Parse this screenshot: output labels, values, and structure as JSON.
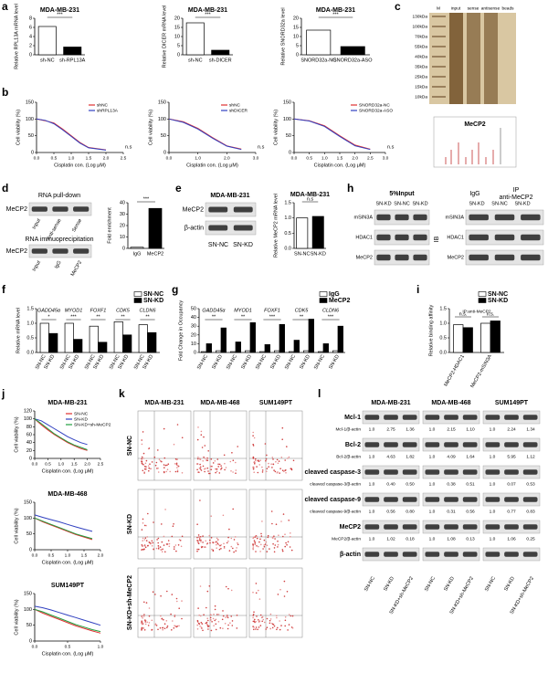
{
  "panel_letters": [
    "a",
    "b",
    "c",
    "d",
    "e",
    "f",
    "g",
    "h",
    "i",
    "j",
    "k",
    "l"
  ],
  "charts": [
    {
      "type": "bar",
      "title": "MDA-MB-231",
      "ylabel": "Relative RPL13A mRNA level",
      "categories": [
        "sh-NC",
        "sh-RPL13A"
      ],
      "values": [
        6.2,
        1.7
      ],
      "colors": [
        "#ffffff",
        "#000000"
      ],
      "ylim": [
        0,
        8
      ],
      "yticks": [
        0,
        2,
        4,
        6,
        8
      ],
      "sig": "***"
    },
    {
      "type": "bar",
      "title": "MDA-MB-231",
      "ylabel": "Relative DICER mRNA level",
      "categories": [
        "sh-NC",
        "sh-DICER"
      ],
      "values": [
        17.5,
        2.5
      ],
      "colors": [
        "#ffffff",
        "#000000"
      ],
      "ylim": [
        0,
        20
      ],
      "yticks": [
        0,
        5,
        10,
        15,
        20
      ],
      "sig": "***"
    },
    {
      "type": "bar",
      "title": "MDA-MB-231",
      "ylabel": "Relative SNORD32a level",
      "categories": [
        "SNORD32a-NC",
        "SNORD32a-ASO"
      ],
      "values": [
        13.5,
        4.5
      ],
      "colors": [
        "#ffffff",
        "#000000"
      ],
      "ylim": [
        0,
        20
      ],
      "yticks": [
        0,
        5,
        10,
        15,
        20
      ],
      "sig": "***"
    },
    {
      "type": "line",
      "ylabel": "Cell viability (%)",
      "xlabel": "Cisplatin con. (Log μM)",
      "x": [
        0,
        0.25,
        0.5,
        0.75,
        1.0,
        1.25,
        1.5,
        2.0
      ],
      "series": [
        {
          "name": "shNC",
          "color": "#e03030",
          "values": [
            100,
            95,
            88,
            70,
            50,
            30,
            15,
            8
          ]
        },
        {
          "name": "shRPL13A",
          "color": "#3040c0",
          "values": [
            100,
            96,
            86,
            68,
            48,
            28,
            14,
            7
          ]
        }
      ],
      "xlim": [
        0,
        2.5
      ],
      "xticks": [
        {
          "value": 0,
          "label": "0.0"
        },
        {
          "value": 0.5,
          "label": "0.5"
        },
        {
          "value": 1,
          "label": "1.0"
        },
        {
          "value": 1.5,
          "label": "1.5"
        },
        {
          "value": 2,
          "label": "2.0"
        },
        {
          "value": 2.5,
          "label": "2.5"
        }
      ],
      "ylim": [
        0,
        150
      ],
      "yticks": [
        0,
        50,
        100,
        150
      ],
      "legend": true,
      "annotation": "n.s"
    },
    {
      "type": "line",
      "ylabel": "Cell viability (%)",
      "xlabel": "Cisplatin con. (Log μM)",
      "x": [
        0,
        0.5,
        1.0,
        1.5,
        2.0,
        2.5
      ],
      "series": [
        {
          "name": "shNC",
          "color": "#e03030",
          "values": [
            100,
            92,
            72,
            45,
            20,
            10
          ]
        },
        {
          "name": "shDICER",
          "color": "#3040c0",
          "values": [
            100,
            90,
            70,
            43,
            19,
            9
          ]
        }
      ],
      "xlim": [
        0,
        3
      ],
      "xticks": [
        {
          "value": 0,
          "label": "0.0"
        },
        {
          "value": 1,
          "label": "1.0"
        },
        {
          "value": 2,
          "label": "2.0"
        },
        {
          "value": 3,
          "label": "3.0"
        }
      ],
      "ylim": [
        0,
        150
      ],
      "yticks": [
        0,
        50,
        100,
        150
      ],
      "legend": true,
      "annotation": "n.s"
    },
    {
      "type": "line",
      "ylabel": "Cell viability (%)",
      "xlabel": "Cisplatin con. (Log μM)",
      "x": [
        0,
        0.5,
        1.0,
        1.5,
        2.0,
        2.5
      ],
      "series": [
        {
          "name": "SNORD32a-NC",
          "color": "#e03030",
          "values": [
            100,
            95,
            80,
            50,
            22,
            10
          ]
        },
        {
          "name": "SNORD32a-ASO",
          "color": "#3040c0",
          "values": [
            100,
            94,
            78,
            48,
            20,
            9
          ]
        }
      ],
      "xlim": [
        0,
        3
      ],
      "xticks": [
        {
          "value": 0,
          "label": "0.0"
        },
        {
          "value": 0.5,
          "label": "0.5"
        },
        {
          "value": 1,
          "label": "1.0"
        },
        {
          "value": 1.5,
          "label": "1.5"
        },
        {
          "value": 2,
          "label": "2.0"
        },
        {
          "value": 2.5,
          "label": "2.5"
        },
        {
          "value": 3,
          "label": "3.0"
        }
      ],
      "ylim": [
        0,
        150
      ],
      "yticks": [
        0,
        50,
        100,
        150
      ],
      "legend": true,
      "annotation": "n.s"
    },
    {
      "type": "bar",
      "ylabel": "Fold enrichment",
      "categories": [
        "IgG",
        "MeCP2"
      ],
      "values": [
        1,
        35
      ],
      "colors": [
        "#ffffff",
        "#000000"
      ],
      "ylim": [
        0,
        40
      ],
      "yticks": [
        0,
        10,
        20,
        30,
        40
      ],
      "sig": "***"
    },
    {
      "type": "bar",
      "title": "MDA-MB-231",
      "ylabel": "Relative MeCP2 mRNA level",
      "categories": [
        "SN-NC",
        "SN-KD"
      ],
      "values": [
        1.0,
        1.05
      ],
      "colors": [
        "#ffffff",
        "#000000"
      ],
      "ylim": [
        0,
        1.5
      ],
      "yticks": [
        {
          "value": 0,
          "label": "0.0"
        },
        {
          "value": 0.5,
          "label": "0.5"
        },
        {
          "value": 1,
          "label": "1.0"
        },
        {
          "value": 1.5,
          "label": "1.5"
        }
      ],
      "sig": "n.s"
    },
    {
      "type": "bar",
      "ylabel": "Relative mRNA level",
      "categories": [
        "GADD45α",
        "MYOD1",
        "FOXF1",
        "CDK5",
        "CLDN6"
      ],
      "series": [
        {
          "name": "SN-NC",
          "color": "#ffffff",
          "values": [
            1.0,
            1.0,
            0.9,
            1.05,
            0.95
          ]
        },
        {
          "name": "SN-KD",
          "color": "#000000",
          "values": [
            0.65,
            0.45,
            0.35,
            0.6,
            0.68
          ]
        }
      ],
      "bar_labels": "series",
      "ylim": [
        0,
        1.5
      ],
      "yticks": [
        {
          "value": 0,
          "label": "0.0"
        },
        {
          "value": 0.5,
          "label": "0.5"
        },
        {
          "value": 1,
          "label": "1.0"
        },
        {
          "value": 1.5,
          "label": "1.5"
        }
      ],
      "sig": [
        "*",
        "***",
        "**",
        "**",
        "**"
      ],
      "legend": true
    },
    {
      "type": "bar",
      "ylabel": "Fold Change in Occupancy",
      "groups": [
        "GADD45α",
        "MYOD1",
        "FOXF1",
        "CDK5",
        "CLDN6"
      ],
      "categories": [
        "SN-NC",
        "SN-KD",
        "SN-NC",
        "SN-KD",
        "SN-NC",
        "SN-KD",
        "SN-NC",
        "SN-KD",
        "SN-NC",
        "SN-KD"
      ],
      "series": [
        {
          "name": "IgG",
          "color": "#ffffff",
          "values": [
            1,
            2,
            1,
            2,
            1,
            2,
            1,
            2,
            1,
            2
          ]
        },
        {
          "name": "MeCP2",
          "color": "#000000",
          "values": [
            10,
            28,
            12,
            34,
            9,
            32,
            14,
            38,
            10,
            30
          ]
        }
      ],
      "ylim": [
        0,
        50
      ],
      "yticks": [
        0,
        10,
        20,
        30,
        40,
        50
      ],
      "sig": [
        "**",
        "**",
        "***",
        "**",
        "***"
      ],
      "legend": true
    },
    {
      "type": "bar",
      "ylabel": "Relative binding affinity",
      "note": "IP:anti-MeCP2",
      "categories": [
        "MeCP2-HDAC1",
        "MeCP2-mSIN3A"
      ],
      "series": [
        {
          "name": "SN-NC",
          "color": "#ffffff",
          "values": [
            0.95,
            1.0
          ]
        },
        {
          "name": "SN-KD",
          "color": "#000000",
          "values": [
            0.85,
            1.08
          ]
        }
      ],
      "ylim": [
        0,
        1.5
      ],
      "yticks": [
        {
          "value": 0,
          "label": "0.0"
        },
        {
          "value": 0.5,
          "label": "0.5"
        },
        {
          "value": 1,
          "label": "1.0"
        },
        {
          "value": 1.5,
          "label": "1.5"
        }
      ],
      "sig": [
        "n.s.",
        "n.s."
      ],
      "legend": true
    },
    {
      "type": "line",
      "title": "MDA-MB-231",
      "ylabel": "Cell viability (%)",
      "xlabel": "Cisplatin con. (Log μM)",
      "x": [
        0,
        0.25,
        0.5,
        0.75,
        1.0,
        1.25,
        1.5,
        1.75,
        2.0
      ],
      "series": [
        {
          "name": "SN-NC",
          "color": "#e03030",
          "values": [
            100,
            85,
            72,
            60,
            50,
            40,
            32,
            25,
            20
          ]
        },
        {
          "name": "SN-KD",
          "color": "#3040c0",
          "values": [
            100,
            95,
            85,
            75,
            65,
            55,
            47,
            40,
            35
          ]
        },
        {
          "name": "SN-KD+sh-MeCP2",
          "color": "#20a040",
          "values": [
            100,
            88,
            75,
            62,
            52,
            42,
            34,
            28,
            22
          ]
        }
      ],
      "xlim": [
        0,
        2.5
      ],
      "xticks": [
        {
          "value": 0,
          "label": "0.0"
        },
        {
          "value": 0.5,
          "label": "0.5"
        },
        {
          "value": 1,
          "label": "1.0"
        },
        {
          "value": 1.5,
          "label": "1.5"
        },
        {
          "value": 2,
          "label": "2.0"
        },
        {
          "value": 2.5,
          "label": "2.5"
        }
      ],
      "ylim": [
        0,
        120
      ],
      "yticks": [
        0,
        20,
        40,
        60,
        80,
        100,
        120
      ],
      "legend": true
    },
    {
      "type": "line",
      "title": "MDA-MB-468",
      "ylabel": "Cell viability (%)",
      "xlabel": "Cisplatin con. (Log μM)",
      "x": [
        0,
        0.25,
        0.5,
        0.75,
        1.0,
        1.25,
        1.5,
        1.75
      ],
      "series": [
        {
          "name": "SN-NC",
          "color": "#e03030",
          "values": [
            100,
            88,
            78,
            68,
            58,
            48,
            40,
            32
          ]
        },
        {
          "name": "SN-KD",
          "color": "#3040c0",
          "values": [
            110,
            102,
            95,
            88,
            80,
            72,
            65,
            58
          ]
        },
        {
          "name": "SN-KD+sh-MeCP2",
          "color": "#20a040",
          "values": [
            100,
            90,
            80,
            70,
            60,
            50,
            42,
            35
          ]
        }
      ],
      "xlim": [
        0,
        2
      ],
      "xticks": [
        {
          "value": 0,
          "label": "0.0"
        },
        {
          "value": 0.5,
          "label": "0.5"
        },
        {
          "value": 1,
          "label": "1.0"
        },
        {
          "value": 1.5,
          "label": "1.5"
        },
        {
          "value": 2,
          "label": "2.0"
        }
      ],
      "ylim": [
        0,
        150
      ],
      "yticks": [
        0,
        50,
        100,
        150
      ]
    },
    {
      "type": "line",
      "title": "SUM149PT",
      "ylabel": "Cell viability (%)",
      "xlabel": "Cisplatin con. (Log μM)",
      "x": [
        0,
        0.125,
        0.25,
        0.375,
        0.5,
        0.625,
        0.75,
        0.875,
        1.0
      ],
      "series": [
        {
          "name": "SN-NC",
          "color": "#e03030",
          "values": [
            100,
            88,
            78,
            68,
            58,
            48,
            40,
            32,
            25
          ]
        },
        {
          "name": "SN-KD",
          "color": "#3040c0",
          "values": [
            110,
            105,
            98,
            90,
            82,
            74,
            66,
            58,
            50
          ]
        },
        {
          "name": "SN-KD+sh-MeCP2",
          "color": "#20a040",
          "values": [
            100,
            92,
            82,
            72,
            62,
            52,
            44,
            36,
            30
          ]
        }
      ],
      "xlim": [
        0,
        1
      ],
      "xticks": [
        {
          "value": 0,
          "label": "0.0"
        },
        {
          "value": 0.5,
          "label": "0.5"
        },
        {
          "value": 1,
          "label": "1.0"
        }
      ],
      "ylim": [
        0,
        150
      ],
      "yticks": [
        0,
        50,
        100,
        150
      ]
    }
  ],
  "gel": {
    "lanes": [
      "M",
      "input",
      "sense",
      "antisense",
      "beads"
    ],
    "markers": [
      "130kDa",
      "100kDa",
      "70kDa",
      "55kDa",
      "40kDa",
      "35kDa",
      "25kDa",
      "15kDa",
      "10kDa"
    ],
    "spectrum_label": "MeCP2"
  },
  "blot_d": {
    "title": "RNA pull-down",
    "protein": "MeCP2",
    "lanes": [
      "Input",
      "Anti-sense",
      "Sense"
    ],
    "rip_title": "RNA immuoprecipitation",
    "rip_protein": "MeCP2",
    "rip_lanes": [
      "Input",
      "IgG",
      "MeCP2"
    ]
  },
  "blot_e": {
    "title": "MDA-MB-231",
    "rows": [
      "MeCP2",
      "β-actin"
    ],
    "lanes": [
      "SN-NC",
      "SN-KD"
    ]
  },
  "blot_h": {
    "input_title": "5%Input",
    "input_lanes": [
      "SN-KD",
      "SN-NC",
      "SN-KD"
    ],
    "igg": "IgG",
    "ip_title": "IP",
    "ip_sub": "anti-MeCP2",
    "ip_lanes": [
      "SN-KD",
      "SN-NC",
      "SN-KD"
    ],
    "rows": [
      "mSIN3A",
      "HDAC1",
      "MeCP2"
    ],
    "ib": "IB"
  },
  "flow": {
    "columns": [
      "MDA-MB-231",
      "MDA-MB-468",
      "SUM149PT"
    ],
    "rows": [
      "SN-NC",
      "SN-KD",
      "SN-KD+sh-MeCP2"
    ]
  },
  "blot_l": {
    "columns": [
      "MDA-MB-231",
      "MDA-MB-468",
      "SUM149PT"
    ],
    "lanes": [
      "SN-NC",
      "SN-KD",
      "SN-KD+sh-MeCP2"
    ],
    "rows": [
      {
        "name": "Mcl-1",
        "ratio_label": "Mcl-1/β-actin",
        "ratios": [
          "1.0",
          "2.75",
          "1.36",
          "1.0",
          "2.15",
          "1.10",
          "1.0",
          "2.24",
          "1.34"
        ]
      },
      {
        "name": "Bcl-2",
        "ratio_label": "Bcl-2/β-actin",
        "ratios": [
          "1.0",
          "4.63",
          "1.82",
          "1.0",
          "4.09",
          "1.64",
          "1.0",
          "5.95",
          "1.12"
        ]
      },
      {
        "name": "cleaved caspase-3",
        "ratio_label": "cleaved caspase-3/β-actin",
        "ratios": [
          "1.0",
          "0.40",
          "0.50",
          "1.0",
          "0.38",
          "0.51",
          "1.0",
          "0.07",
          "0.53"
        ]
      },
      {
        "name": "cleaved caspase-9",
        "ratio_label": "cleaved caspase-9/β-actin",
        "ratios": [
          "1.0",
          "0.56",
          "0.80",
          "1.0",
          "0.31",
          "0.56",
          "1.0",
          "0.77",
          "0.83"
        ]
      },
      {
        "name": "MeCP2",
        "ratio_label": "MeCP2/β-actin",
        "ratios": [
          "1.0",
          "1.02",
          "0.18",
          "1.0",
          "1.08",
          "0.13",
          "1.0",
          "1.06",
          "0.25"
        ]
      },
      {
        "name": "β-actin"
      }
    ]
  }
}
